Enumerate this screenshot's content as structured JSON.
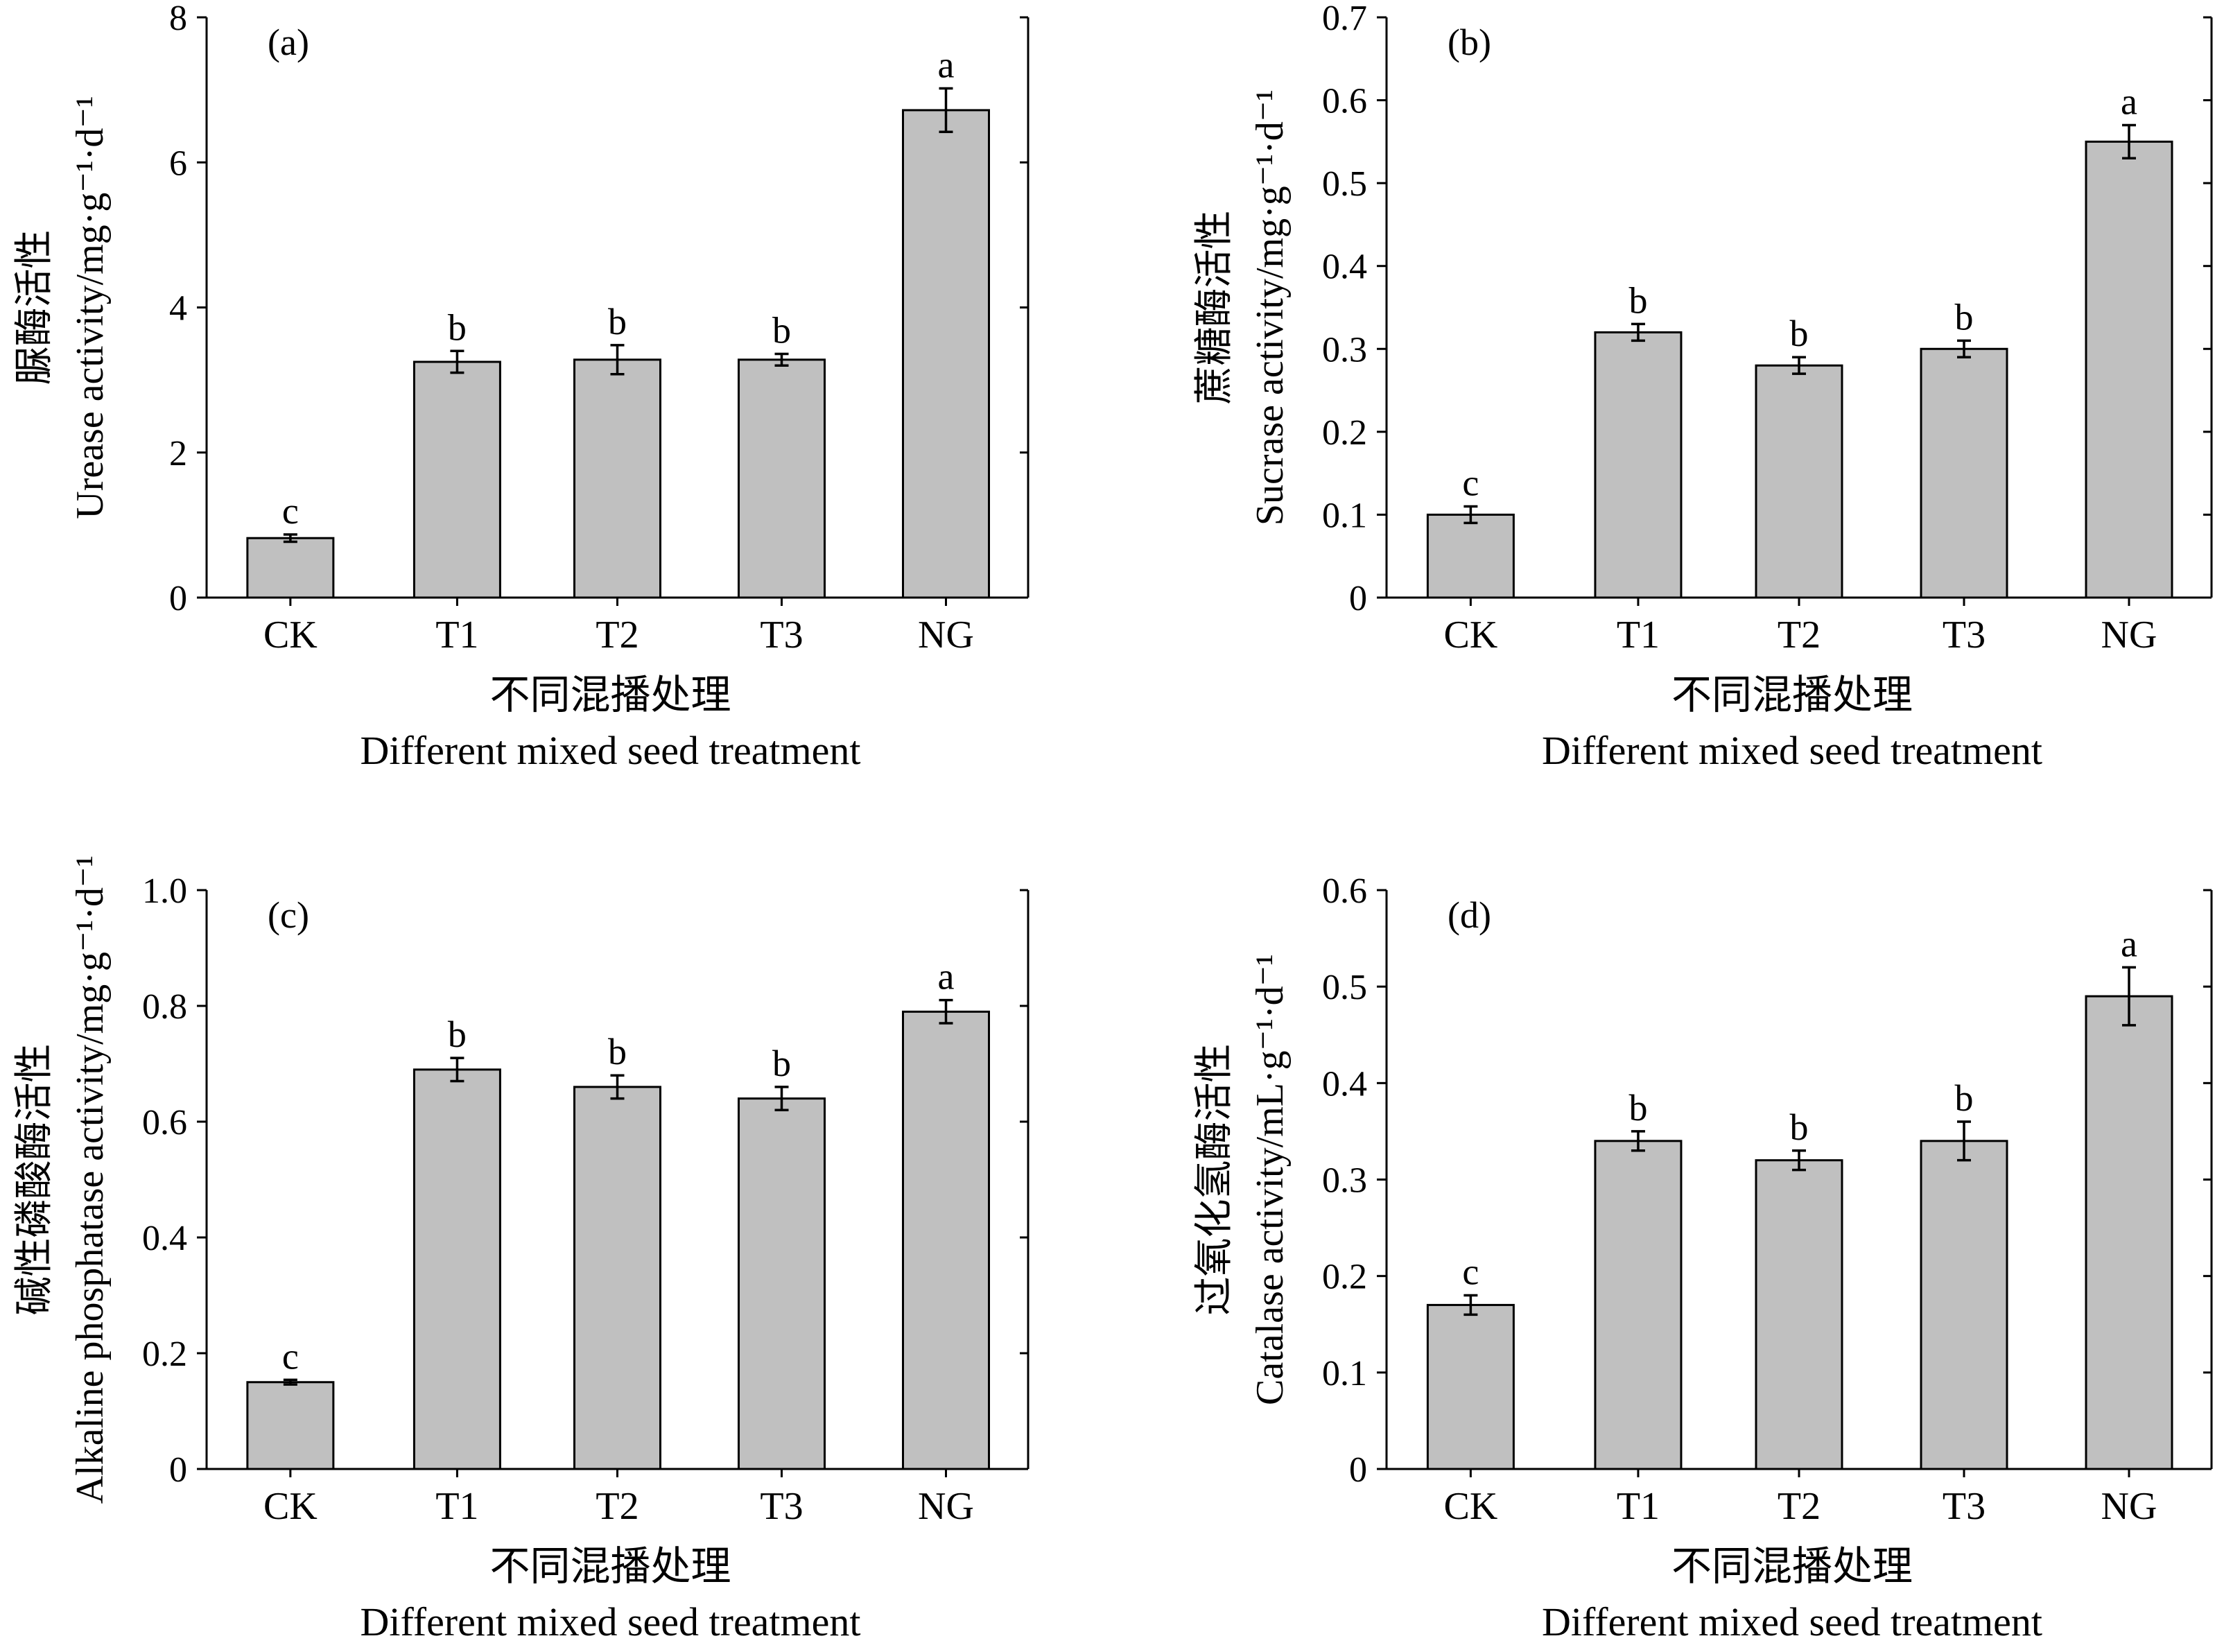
{
  "chart_data": [
    {
      "type": "bar",
      "panel": "(a)",
      "categories": [
        "CK",
        "T1",
        "T2",
        "T3",
        "NG"
      ],
      "values": [
        0.82,
        3.25,
        3.28,
        3.28,
        6.72
      ],
      "errors": [
        0.05,
        0.15,
        0.2,
        0.08,
        0.3
      ],
      "significance": [
        "c",
        "b",
        "b",
        "b",
        "a"
      ],
      "ylim": [
        0,
        8
      ],
      "yticks": [
        0,
        2,
        4,
        6,
        8
      ],
      "ytick_labels": [
        "0",
        "2",
        "4",
        "6",
        "8"
      ],
      "ylabel_cn": "脲酶活性",
      "ylabel_en": "Urease activity/mg·g⁻¹·d⁻¹",
      "xlabel_cn": "不同混播处理",
      "xlabel_en": "Different mixed seed treatment"
    },
    {
      "type": "bar",
      "panel": "(b)",
      "categories": [
        "CK",
        "T1",
        "T2",
        "T3",
        "NG"
      ],
      "values": [
        0.1,
        0.32,
        0.28,
        0.3,
        0.55
      ],
      "errors": [
        0.01,
        0.01,
        0.01,
        0.01,
        0.02
      ],
      "significance": [
        "c",
        "b",
        "b",
        "b",
        "a"
      ],
      "ylim": [
        0,
        0.7
      ],
      "yticks": [
        0,
        0.1,
        0.2,
        0.3,
        0.4,
        0.5,
        0.6,
        0.7
      ],
      "ytick_labels": [
        "0",
        "0.1",
        "0.2",
        "0.3",
        "0.4",
        "0.5",
        "0.6",
        "0.7"
      ],
      "ylabel_cn": "蔗糖酶活性",
      "ylabel_en": "Sucrase activity/mg·g⁻¹·d⁻¹",
      "xlabel_cn": "不同混播处理",
      "xlabel_en": "Different mixed seed treatment"
    },
    {
      "type": "bar",
      "panel": "(c)",
      "categories": [
        "CK",
        "T1",
        "T2",
        "T3",
        "NG"
      ],
      "values": [
        0.15,
        0.69,
        0.66,
        0.64,
        0.79
      ],
      "errors": [
        0.004,
        0.02,
        0.02,
        0.02,
        0.02
      ],
      "significance": [
        "c",
        "b",
        "b",
        "b",
        "a"
      ],
      "ylim": [
        0,
        1.0
      ],
      "yticks": [
        0,
        0.2,
        0.4,
        0.6,
        0.8,
        1.0
      ],
      "ytick_labels": [
        "0",
        "0.2",
        "0.4",
        "0.6",
        "0.8",
        "1.0"
      ],
      "ylabel_cn": "碱性磷酸酶活性",
      "ylabel_en": "Alkaline phosphatase activity/mg·g⁻¹·d⁻¹",
      "xlabel_cn": "不同混播处理",
      "xlabel_en": "Different mixed seed treatment"
    },
    {
      "type": "bar",
      "panel": "(d)",
      "categories": [
        "CK",
        "T1",
        "T2",
        "T3",
        "NG"
      ],
      "values": [
        0.17,
        0.34,
        0.32,
        0.34,
        0.49
      ],
      "errors": [
        0.01,
        0.01,
        0.01,
        0.02,
        0.03
      ],
      "significance": [
        "c",
        "b",
        "b",
        "b",
        "a"
      ],
      "ylim": [
        0,
        0.6
      ],
      "yticks": [
        0,
        0.1,
        0.2,
        0.3,
        0.4,
        0.5,
        0.6
      ],
      "ytick_labels": [
        "0",
        "0.1",
        "0.2",
        "0.3",
        "0.4",
        "0.5",
        "0.6"
      ],
      "ylabel_cn": "过氧化氢酶活性",
      "ylabel_en": "Catalase activity/mL·g⁻¹·d⁻¹",
      "xlabel_cn": "不同混播处理",
      "xlabel_en": "Different mixed seed treatment"
    }
  ]
}
